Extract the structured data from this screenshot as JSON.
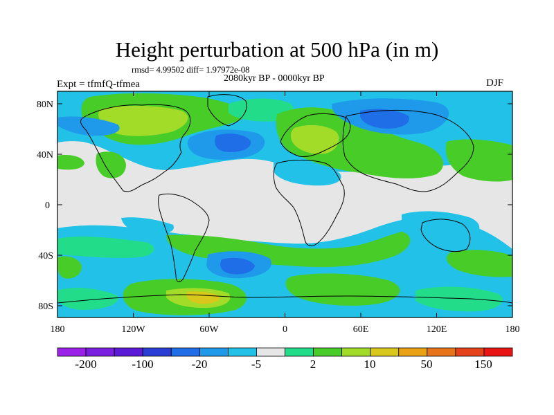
{
  "title": "Height perturbation at 500 hPa (in m)",
  "stats": "rmsd= 4.99502 diff= 1.97972e-08",
  "period": "2080kyr BP - 0000kyr BP",
  "experiment": "Expt = tfmfQ-tfmea",
  "season": "DJF",
  "lat_labels": [
    "80N",
    "40N",
    "0",
    "40S",
    "80S"
  ],
  "lon_labels": [
    "180",
    "120W",
    "60W",
    "0",
    "60E",
    "120E",
    "180"
  ],
  "colorbar": {
    "colors": [
      "#9b20e8",
      "#7a1ee0",
      "#5a1ad6",
      "#2a3ed6",
      "#1f6ee8",
      "#1f9aea",
      "#22c2e8",
      "#e6e6e6",
      "#22dc8a",
      "#48cc28",
      "#a2dc28",
      "#d8c81c",
      "#eaa214",
      "#e8741a",
      "#e4421a",
      "#e81414"
    ],
    "labels": [
      "-200",
      "-100",
      "-20",
      "-5",
      "2",
      "10",
      "50",
      "150"
    ]
  }
}
